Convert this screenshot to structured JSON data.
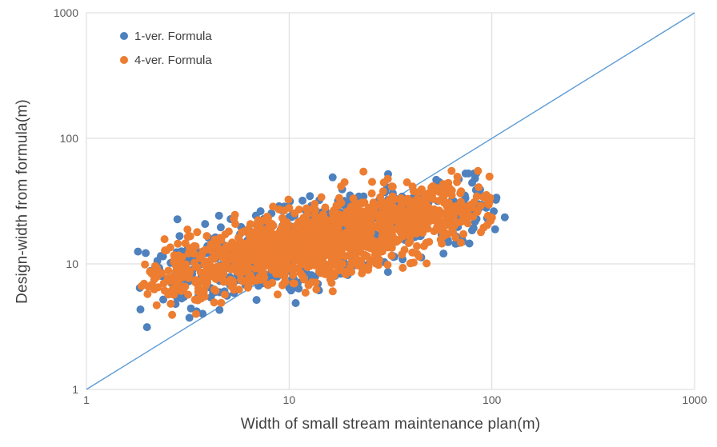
{
  "chart_data": {
    "type": "scatter",
    "title": "",
    "x_axis": {
      "label": "Width of small stream maintenance plan(m)",
      "scale": "log",
      "min": 1,
      "max": 1000,
      "ticks": [
        "1",
        "10",
        "100",
        "1000"
      ],
      "grid": true
    },
    "y_axis": {
      "label": "Design-width from formula(m)",
      "scale": "log",
      "min": 1,
      "max": 1000,
      "ticks": [
        "1",
        "10",
        "100",
        "1000"
      ],
      "grid": true
    },
    "reference_line": {
      "name": "y = x diagonal",
      "x": [
        1,
        1000
      ],
      "y": [
        1,
        1000
      ],
      "color": "#5B9BD5"
    },
    "legend": {
      "position": "top-left-inside"
    },
    "series": [
      {
        "name": "1-ver. Formula",
        "color": "#4E81BD",
        "marker": "circle",
        "marker_radius": 5,
        "x_range": [
          1.5,
          120
        ],
        "y_range": [
          3,
          52
        ],
        "cloud_model": {
          "n": 620,
          "seed": 11,
          "logx_min": 0.17,
          "logx_max": 2.08,
          "logy_intercept": 0.74,
          "logy_slope": 0.38,
          "logy_noise_sd": 0.16,
          "logy_min": 0.42,
          "logy_max": 1.72
        }
      },
      {
        "name": "4-ver. Formula",
        "color": "#ED7D31",
        "marker": "circle",
        "marker_radius": 5,
        "x_range": [
          1.9,
          105
        ],
        "y_range": [
          3.5,
          55
        ],
        "cloud_model": {
          "n": 1350,
          "seed": 77,
          "logx_min": 0.27,
          "logx_max": 2.01,
          "logy_intercept": 0.74,
          "logy_slope": 0.38,
          "logy_noise_sd": 0.14,
          "logy_min": 0.5,
          "logy_max": 1.74
        }
      }
    ],
    "trend_estimate": "log10(y) ≈ 0.74 + 0.38·log10(x); dense positively correlated cloud, orange plotted over blue"
  },
  "colors": {
    "grid": "#D9D9D9",
    "tick_text": "#595959",
    "title_text": "#3F3F3F",
    "background": "#FFFFFF"
  }
}
